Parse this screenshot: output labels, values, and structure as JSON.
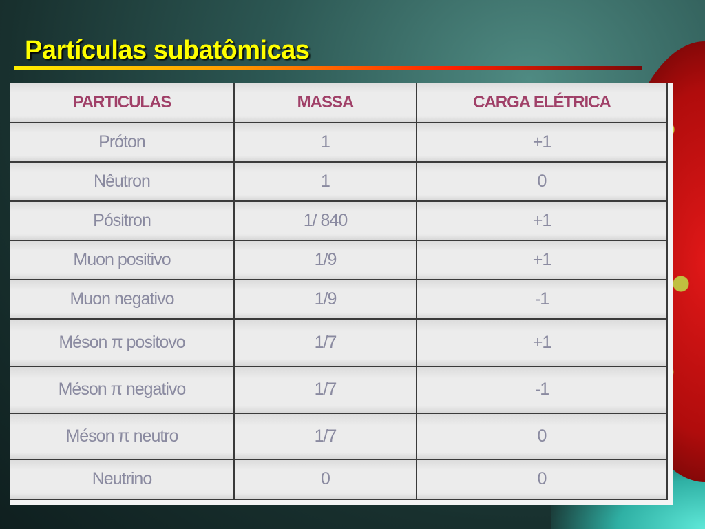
{
  "slide": {
    "title": "Partículas subatômicas"
  },
  "table": {
    "headers": [
      "PARTICULAS",
      "MASSA",
      "CARGA  ELÉTRICA"
    ],
    "rows": [
      [
        "Próton",
        "1",
        "+1"
      ],
      [
        "Nêutron",
        "1",
        "0"
      ],
      [
        "Pósitron",
        "1/ 840",
        "+1"
      ],
      [
        "Muon positivo",
        "1/9",
        "+1"
      ],
      [
        "Muon negativo",
        "1/9",
        "-1"
      ],
      [
        "Méson π positovo",
        "1/7",
        "+1"
      ],
      [
        "Méson π negativo",
        "1/7",
        "-1"
      ],
      [
        "Méson π neutro",
        "1/7",
        "0"
      ],
      [
        "Neutrino",
        "0",
        "0"
      ]
    ]
  },
  "colors": {
    "title": "#ffff00",
    "header_text": "#a04068",
    "cell_text": "#8a8aa0"
  }
}
